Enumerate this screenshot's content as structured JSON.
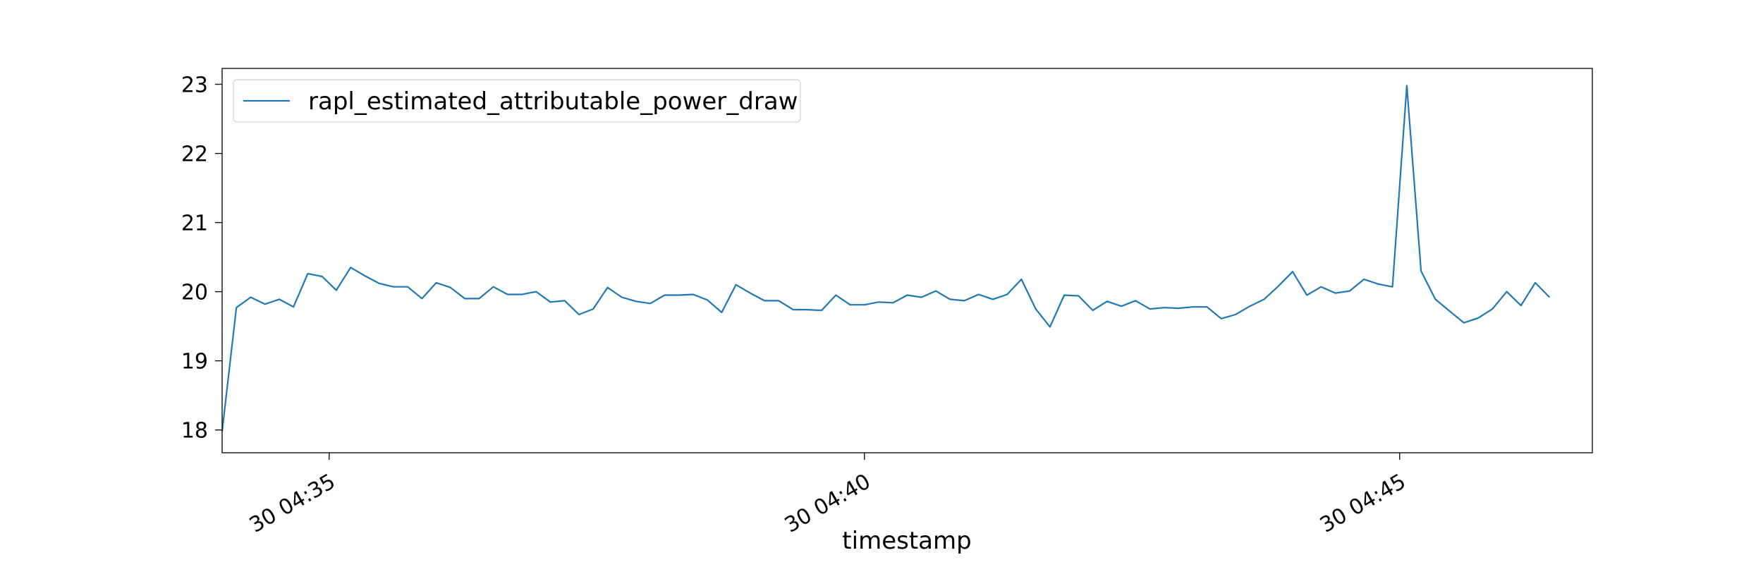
{
  "chart_data": {
    "type": "line",
    "title": "",
    "xlabel": "timestamp",
    "ylabel": "",
    "x_start": "30 04:34:00",
    "x_step_seconds": 8,
    "xlim": [
      "30 04:34:00",
      "30 04:46:48"
    ],
    "ylim": [
      17.67,
      23.23
    ],
    "grid": false,
    "legend_position": "upper-left",
    "x_ticks": [
      {
        "value": "30 04:35",
        "label": "30 04:35"
      },
      {
        "value": "30 04:40",
        "label": "30 04:40"
      },
      {
        "value": "30 04:45",
        "label": "30 04:45"
      }
    ],
    "y_ticks": [
      18,
      19,
      20,
      21,
      22,
      23
    ],
    "series": [
      {
        "name": "rapl_estimated_attributable_power_draw",
        "color": "#1f77b4",
        "values": [
          17.98,
          19.77,
          19.92,
          19.82,
          19.89,
          19.78,
          20.26,
          20.22,
          20.02,
          20.35,
          20.23,
          20.12,
          20.07,
          20.07,
          19.9,
          20.13,
          20.06,
          19.9,
          19.9,
          20.07,
          19.96,
          19.96,
          20.0,
          19.85,
          19.87,
          19.67,
          19.75,
          20.06,
          19.92,
          19.86,
          19.83,
          19.95,
          19.95,
          19.96,
          19.88,
          19.7,
          20.1,
          19.98,
          19.87,
          19.87,
          19.74,
          19.74,
          19.73,
          19.95,
          19.81,
          19.81,
          19.85,
          19.84,
          19.95,
          19.92,
          20.01,
          19.89,
          19.87,
          19.96,
          19.89,
          19.96,
          20.18,
          19.75,
          19.49,
          19.95,
          19.94,
          19.73,
          19.86,
          19.79,
          19.87,
          19.75,
          19.77,
          19.76,
          19.78,
          19.78,
          19.61,
          19.67,
          19.79,
          19.89,
          20.08,
          20.29,
          19.95,
          20.07,
          19.98,
          20.01,
          20.18,
          20.11,
          20.07,
          22.98,
          20.3,
          19.89,
          19.72,
          19.55,
          19.62,
          19.75,
          20.0,
          19.8,
          20.13,
          19.92
        ]
      }
    ]
  }
}
